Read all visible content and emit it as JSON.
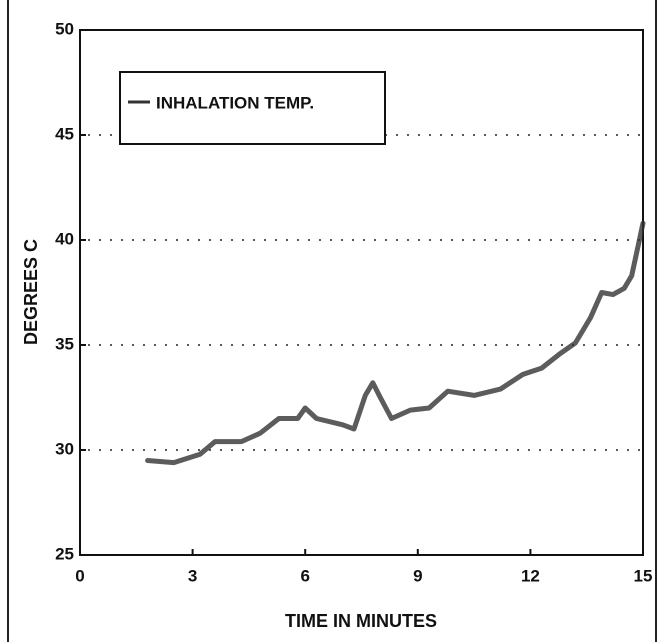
{
  "chart_data": {
    "type": "line",
    "xlabel": "TIME IN MINUTES",
    "ylabel": "DEGREES C",
    "xlim": [
      0,
      15
    ],
    "ylim": [
      25,
      50
    ],
    "xticks": [
      0,
      3,
      6,
      9,
      12,
      15
    ],
    "yticks": [
      25,
      30,
      35,
      40,
      45,
      50
    ],
    "grid": true,
    "legend": "upper left",
    "series": [
      {
        "name": "INHALATION TEMP.",
        "color": "#333333",
        "x": [
          1.8,
          2.5,
          3.2,
          3.6,
          4.3,
          4.8,
          5.3,
          5.8,
          6.0,
          6.3,
          7.0,
          7.3,
          7.6,
          7.8,
          8.0,
          8.3,
          8.8,
          9.3,
          9.8,
          10.5,
          11.2,
          11.8,
          12.3,
          12.8,
          13.2,
          13.6,
          13.9,
          14.2,
          14.5,
          14.7,
          15.0
        ],
        "values": [
          29.5,
          29.4,
          29.8,
          30.4,
          30.4,
          30.8,
          31.5,
          31.5,
          32.0,
          31.5,
          31.2,
          31.0,
          32.6,
          33.2,
          32.5,
          31.5,
          31.9,
          32.0,
          32.8,
          32.6,
          32.9,
          33.6,
          33.9,
          34.6,
          35.1,
          36.3,
          37.5,
          37.4,
          37.7,
          38.3,
          40.8
        ]
      }
    ]
  }
}
